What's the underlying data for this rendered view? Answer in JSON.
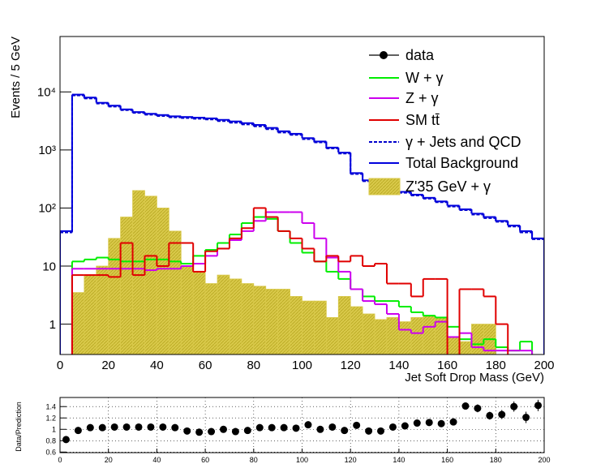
{
  "chart_data": [
    {
      "type": "histogram",
      "y_label": "Events / 5 GeV",
      "x_label": "Jet Soft Drop Mass (GeV)",
      "log_y": true,
      "bins": [
        0,
        5,
        10,
        15,
        20,
        25,
        30,
        35,
        40,
        45,
        50,
        55,
        60,
        65,
        70,
        75,
        80,
        85,
        90,
        95,
        100,
        105,
        110,
        115,
        120,
        125,
        130,
        135,
        140,
        145,
        150,
        155,
        160,
        165,
        170,
        175,
        180,
        185,
        190,
        195,
        200
      ],
      "xlim": [
        0,
        200
      ],
      "xticks": [
        0,
        20,
        40,
        60,
        80,
        100,
        120,
        140,
        160,
        180,
        200
      ],
      "ylim": [
        0.3,
        90000
      ],
      "yticks": [
        1,
        10,
        {
          "value": 100,
          "label": "10²"
        },
        {
          "value": 1000,
          "label": "10³"
        },
        {
          "value": 10000,
          "label": "10⁴"
        }
      ],
      "series": [
        {
          "name": "Z'35 GeV + γ",
          "color": "#d9c94a",
          "style": "filled",
          "values": [
            null,
            3.5,
            7,
            10,
            30,
            70,
            200,
            160,
            100,
            40,
            10,
            8,
            5,
            7,
            6,
            5,
            4.5,
            4,
            4,
            3,
            2.5,
            2.5,
            1.3,
            3,
            2,
            1.5,
            1.2,
            1.3,
            1.1,
            1.3,
            1.4,
            1.3,
            0.6,
            0.5,
            1,
            1,
            null,
            null,
            null,
            null
          ]
        },
        {
          "name": "W + γ",
          "color": "#00ee00",
          "style": "solid",
          "values": [
            null,
            12,
            13,
            14,
            13,
            12,
            12,
            13,
            13,
            12,
            11,
            15,
            19,
            25,
            35,
            55,
            70,
            65,
            40,
            25,
            17,
            12,
            8,
            6,
            4,
            3,
            2.5,
            2.5,
            2,
            1.6,
            1.4,
            1.3,
            0.9,
            0.55,
            0.45,
            0.55,
            0.4,
            0.35,
            0.5,
            null
          ]
        },
        {
          "name": "Z + γ",
          "color": "#cc00ee",
          "style": "solid",
          "values": [
            null,
            9,
            9,
            9,
            9,
            9,
            9,
            8.5,
            9,
            9,
            10,
            11,
            15,
            20,
            28,
            40,
            60,
            85,
            85,
            85,
            55,
            30,
            14,
            8,
            4,
            2.5,
            2.2,
            1.5,
            0.8,
            0.7,
            0.9,
            1.1,
            0.6,
            0.7,
            0.4,
            0.35,
            0.35,
            0.35,
            0.35,
            null
          ]
        },
        {
          "name": "SM tt̄",
          "color": "#e00000",
          "style": "solid",
          "values": [
            null,
            7,
            7,
            7,
            6.5,
            25,
            7,
            15,
            10,
            25,
            25,
            8,
            18,
            20,
            30,
            45,
            100,
            70,
            40,
            30,
            20,
            12,
            15,
            12,
            15,
            10,
            11,
            5,
            5,
            3,
            6,
            6,
            null,
            4,
            4,
            3,
            1,
            null,
            null,
            null
          ]
        },
        {
          "name": "γ + Jets and QCD",
          "color": "#0000cc",
          "style": "dashed",
          "values": [
            38,
            8700,
            7700,
            6300,
            5600,
            4850,
            4350,
            4050,
            3850,
            3650,
            3550,
            3450,
            3350,
            3150,
            2950,
            2750,
            2550,
            2280,
            2000,
            1820,
            1540,
            1350,
            1060,
            870,
            385,
            290,
            240,
            212,
            183,
            164,
            145,
            126,
            106,
            92,
            77,
            67,
            58,
            48,
            38,
            29
          ]
        },
        {
          "name": "Total Background",
          "color": "#0000dd",
          "style": "solid",
          "values": [
            40,
            9000,
            8000,
            6500,
            5800,
            5000,
            4500,
            4200,
            4000,
            3800,
            3700,
            3600,
            3500,
            3300,
            3100,
            2900,
            2700,
            2400,
            2100,
            1900,
            1600,
            1400,
            1100,
            900,
            400,
            300,
            250,
            220,
            190,
            170,
            150,
            130,
            110,
            95,
            80,
            70,
            60,
            50,
            40,
            30
          ]
        }
      ]
    },
    {
      "type": "scatter",
      "y_label": "Data/Prediction",
      "xlim": [
        0,
        200
      ],
      "xticks": [
        0,
        20,
        40,
        60,
        80,
        100,
        120,
        140,
        160,
        180,
        200
      ],
      "ylim": [
        0.59,
        1.56
      ],
      "yticks": [
        0.6,
        0.8,
        1,
        1.2,
        1.4
      ],
      "grid": true,
      "x": [
        2.5,
        7.5,
        12.5,
        17.5,
        22.5,
        27.5,
        32.5,
        37.5,
        42.5,
        47.5,
        52.5,
        57.5,
        62.5,
        67.5,
        72.5,
        77.5,
        82.5,
        87.5,
        92.5,
        97.5,
        102.5,
        107.5,
        112.5,
        117.5,
        122.5,
        127.5,
        132.5,
        137.5,
        142.5,
        147.5,
        152.5,
        157.5,
        162.5,
        167.5,
        172.5,
        177.5,
        182.5,
        187.5,
        192.5,
        197.5
      ],
      "series": [
        {
          "name": "data",
          "color": "#000000",
          "values": [
            0.82,
            0.98,
            1.03,
            1.03,
            1.04,
            1.04,
            1.04,
            1.04,
            1.04,
            1.03,
            0.97,
            0.95,
            0.96,
            1.0,
            0.96,
            0.98,
            1.03,
            1.03,
            1.03,
            1.02,
            1.08,
            1.0,
            1.04,
            0.98,
            1.07,
            0.97,
            0.97,
            1.04,
            1.06,
            1.11,
            1.12,
            1.1,
            1.13,
            1.41,
            1.37,
            1.24,
            1.26,
            1.4,
            1.21,
            1.42
          ],
          "errors": [
            0.05,
            0.01,
            0.01,
            0.01,
            0.01,
            0.01,
            0.01,
            0.01,
            0.01,
            0.01,
            0.01,
            0.01,
            0.01,
            0.01,
            0.01,
            0.01,
            0.01,
            0.01,
            0.01,
            0.01,
            0.02,
            0.02,
            0.02,
            0.02,
            0.03,
            0.03,
            0.03,
            0.03,
            0.04,
            0.04,
            0.04,
            0.05,
            0.05,
            0.06,
            0.07,
            0.07,
            0.08,
            0.09,
            0.1,
            0.1
          ]
        }
      ]
    }
  ]
}
